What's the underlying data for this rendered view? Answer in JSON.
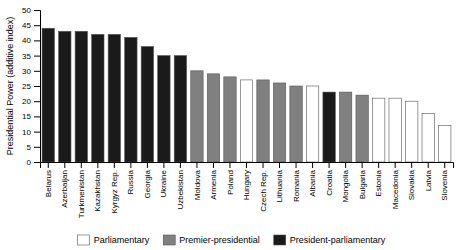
{
  "chart_data": {
    "type": "bar",
    "stacked": true,
    "grid": false,
    "legend": "bottom",
    "ylabel": "Presidential Power (additive index)",
    "categories": [
      "Belarus",
      "Azerbaijan",
      "Turkmenistan",
      "Kazakhstan",
      "Kyrgyz Rep.",
      "Russia",
      "Georgia",
      "Ukraine",
      "Uzbekistan",
      "Moldova",
      "Armenia",
      "Poland",
      "Hungary",
      "Czech Rep.",
      "Lithuania",
      "Romania",
      "Albania",
      "Croatia",
      "Mongolia",
      "Bulgaria",
      "Estonia",
      "Macedonia",
      "Slovakia",
      "Latvia",
      "Slovenia"
    ],
    "series": [
      {
        "name": "Parliamentary",
        "color": "#ffffff",
        "values": [
          null,
          null,
          null,
          null,
          null,
          null,
          null,
          null,
          null,
          null,
          null,
          null,
          27,
          null,
          null,
          null,
          25,
          null,
          null,
          null,
          21,
          21,
          20,
          16,
          12
        ]
      },
      {
        "name": "Premier-presidential",
        "color": "#808080",
        "values": [
          null,
          null,
          null,
          null,
          null,
          null,
          null,
          null,
          null,
          30,
          29,
          28,
          null,
          27,
          26,
          25,
          null,
          null,
          23,
          22,
          null,
          null,
          null,
          null,
          null
        ]
      },
      {
        "name": "President-parliamentary",
        "color": "#1a1a1a",
        "values": [
          44,
          43,
          43,
          42,
          42,
          41,
          38,
          35,
          35,
          null,
          null,
          null,
          null,
          null,
          null,
          null,
          null,
          23,
          null,
          null,
          null,
          null,
          null,
          null,
          null
        ]
      }
    ],
    "ylim": [
      0,
      50
    ],
    "yticks": [
      0,
      5,
      10,
      15,
      20,
      25,
      30,
      35,
      40,
      45,
      50
    ]
  }
}
